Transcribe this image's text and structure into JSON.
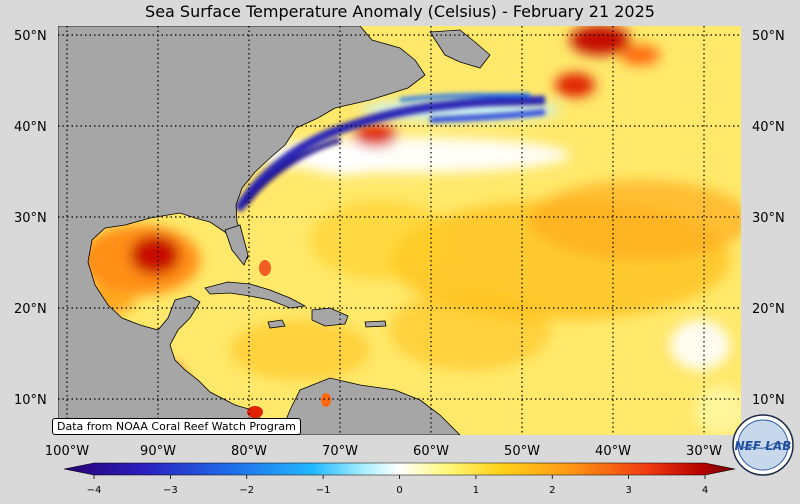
{
  "title": "Sea Surface Temperature Anomaly (Celsius) - February 21 2025",
  "credit": "Data from NOAA Coral Reef Watch Program",
  "lat_labels": [
    "50°N",
    "40°N",
    "30°N",
    "20°N",
    "10°N"
  ],
  "lon_labels": [
    "100°W",
    "90°W",
    "80°W",
    "70°W",
    "60°W",
    "50°W",
    "40°W",
    "30°W"
  ],
  "colorbar": {
    "min": -4,
    "max": 4,
    "tick_labels": [
      "−4",
      "−3",
      "−2",
      "−1",
      "0",
      "1",
      "2",
      "3",
      "4"
    ],
    "colors": [
      "#280070",
      "#2a1fbf",
      "#1f6ee8",
      "#22b8ff",
      "#aef0ff",
      "#ffffff",
      "#fff77a",
      "#ffd21a",
      "#ff9a14",
      "#ef3a12",
      "#b50000",
      "#6e0000"
    ]
  },
  "colors": {
    "land": "#a6a6a6",
    "ocean_base": "#ffe86a",
    "background": "#d9d9d9"
  },
  "logo": {
    "text": "NEF LAB"
  }
}
